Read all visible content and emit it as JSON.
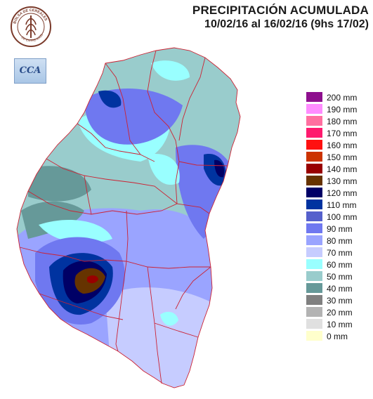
{
  "header": {
    "title": "PRECIPITACIÓN ACUMULADA",
    "period": "10/02/16 al 16/02/16 (9hs 17/02)"
  },
  "logos": {
    "bolsa_text": "BOLSA DE CEREALES",
    "bolsa_sub": "DE ENTRE RIOS",
    "cca_text": "CCA"
  },
  "legend": [
    {
      "label": "200 mm",
      "color": "#8e0f8e"
    },
    {
      "label": "190 mm",
      "color": "#ff8cff"
    },
    {
      "label": "180 mm",
      "color": "#ff6fa0"
    },
    {
      "label": "170 mm",
      "color": "#ff1a6e"
    },
    {
      "label": "160 mm",
      "color": "#ff1010"
    },
    {
      "label": "150 mm",
      "color": "#cc3300"
    },
    {
      "label": "140 mm",
      "color": "#990000"
    },
    {
      "label": "130 mm",
      "color": "#663300"
    },
    {
      "label": "120 mm",
      "color": "#000066"
    },
    {
      "label": "110 mm",
      "color": "#0033a0"
    },
    {
      "label": "100 mm",
      "color": "#5560cc"
    },
    {
      "label": "90 mm",
      "color": "#6f78f0"
    },
    {
      "label": "80 mm",
      "color": "#9aa4ff"
    },
    {
      "label": "70 mm",
      "color": "#c6ccff"
    },
    {
      "label": "60 mm",
      "color": "#99ffff"
    },
    {
      "label": "50 mm",
      "color": "#99cccc"
    },
    {
      "label": "40 mm",
      "color": "#669999"
    },
    {
      "label": "30 mm",
      "color": "#808080"
    },
    {
      "label": "20 mm",
      "color": "#b3b3b3"
    },
    {
      "label": "10 mm",
      "color": "#e0e0e0"
    },
    {
      "label": "0 mm",
      "color": "#ffffcc"
    }
  ]
}
